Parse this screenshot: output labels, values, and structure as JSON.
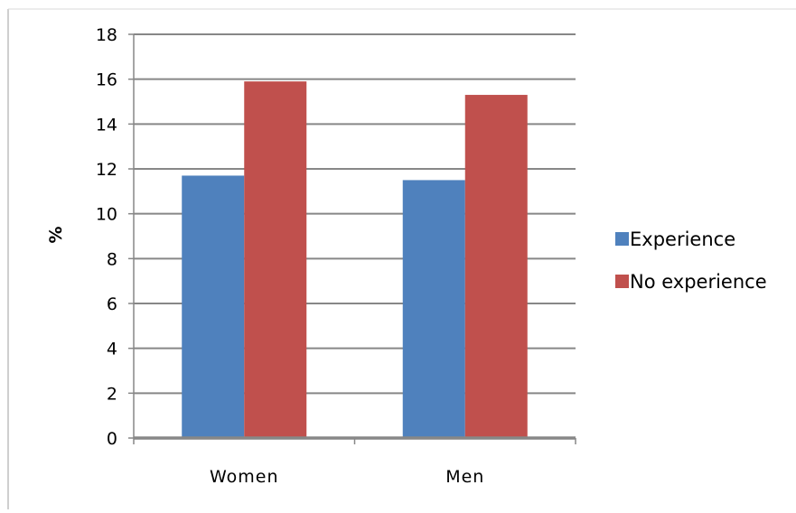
{
  "chart_data": {
    "type": "bar",
    "title": "",
    "xlabel": "",
    "ylabel": "%",
    "ylim": [
      0,
      18
    ],
    "yticks": [
      0,
      2,
      4,
      6,
      8,
      10,
      12,
      14,
      16,
      18
    ],
    "grid": true,
    "legend_position": "right",
    "categories": [
      "Women",
      "Men"
    ],
    "series": [
      {
        "name": "Experience",
        "color": "#4F81BD",
        "values": [
          11.7,
          11.5
        ]
      },
      {
        "name": "No experience",
        "color": "#C0504D",
        "values": [
          15.9,
          15.3
        ]
      }
    ]
  }
}
